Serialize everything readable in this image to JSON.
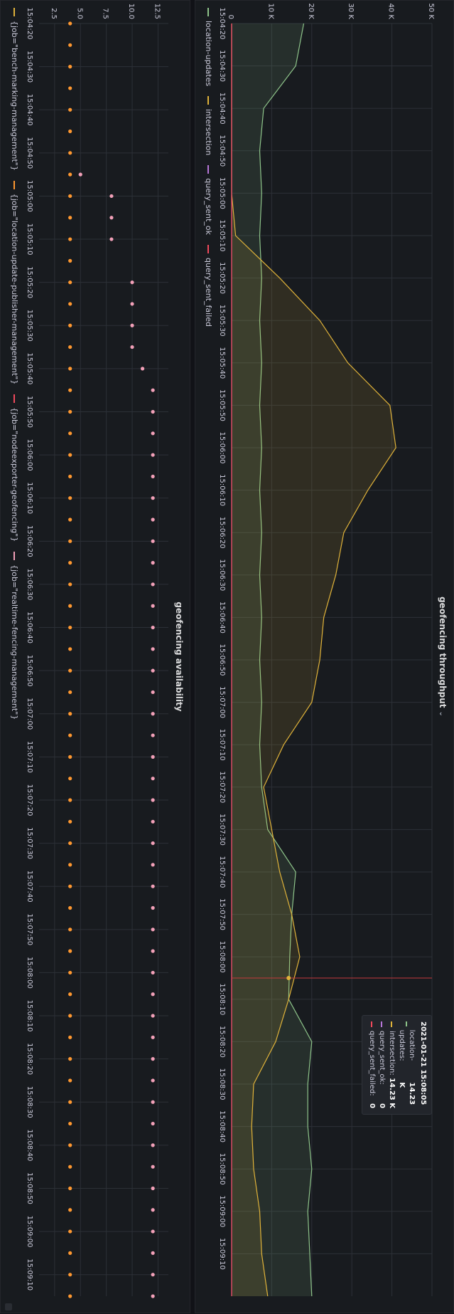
{
  "panels": {
    "throughput": {
      "title": "geofencing throughput",
      "legend": [
        {
          "name": "location-updates",
          "color": "#8ec48a"
        },
        {
          "name": "intersection",
          "color": "#e0b33a"
        },
        {
          "name": "query_sent_ok",
          "color": "#b877d9"
        },
        {
          "name": "query_sent_failed",
          "color": "#f2495c"
        }
      ],
      "tooltip": {
        "time": "2021-01-21 15:08:05",
        "rows": [
          {
            "name": "location-updates:",
            "value": "14.23 K",
            "color": "#8ec48a"
          },
          {
            "name": "intersection:",
            "value": "14.23 K",
            "color": "#e0b33a"
          },
          {
            "name": "query_sent_ok:",
            "value": "0",
            "color": "#b877d9"
          },
          {
            "name": "query_sent_failed:",
            "value": "0",
            "color": "#f2495c"
          }
        ]
      }
    },
    "availability": {
      "title": "geofencing availability",
      "legend": [
        {
          "name": "{job=\"bench-marking-management\"}",
          "color": "#e0b33a"
        },
        {
          "name": "{job=\"location-update-publisher-management\"}",
          "color": "#ff9830"
        },
        {
          "name": "{job=\"nodeexporter-geofencing\"}",
          "color": "#f2495c"
        },
        {
          "name": "{job=\"realtime-fencing-management\"}",
          "color": "#f2a0b8"
        }
      ]
    }
  },
  "chart_data": [
    {
      "type": "area",
      "title": "geofencing throughput",
      "x": [
        "15:04:20",
        "15:04:30",
        "15:04:40",
        "15:04:50",
        "15:05:00",
        "15:05:10",
        "15:05:20",
        "15:05:30",
        "15:05:40",
        "15:05:50",
        "15:06:00",
        "15:06:10",
        "15:06:20",
        "15:06:30",
        "15:06:40",
        "15:06:50",
        "15:07:00",
        "15:07:10",
        "15:07:20",
        "15:07:30",
        "15:07:40",
        "15:07:50",
        "15:08:00",
        "15:08:10",
        "15:08:20",
        "15:08:30",
        "15:08:40",
        "15:08:50",
        "15:09:00",
        "15:09:10",
        "15:09:20"
      ],
      "x_ticks": [
        "15:04:20",
        "15:04:30",
        "15:04:40",
        "15:04:50",
        "15:05:00",
        "15:05:10",
        "15:05:20",
        "15:05:30",
        "15:05:40",
        "15:05:50",
        "15:06:00",
        "15:06:10",
        "15:06:20",
        "15:06:30",
        "15:06:40",
        "15:06:50",
        "15:07:00",
        "15:07:10",
        "15:07:20",
        "15:07:30",
        "15:07:40",
        "15:07:50",
        "15:08:00",
        "15:08:10",
        "15:08:20",
        "15:08:30",
        "15:08:40",
        "15:08:50",
        "15:09:00",
        "15:09:10"
      ],
      "ylim": [
        0,
        50000
      ],
      "y_ticks": [
        0,
        10000,
        20000,
        30000,
        40000,
        50000
      ],
      "y_tick_labels": [
        "0",
        "10 K",
        "20 K",
        "30 K",
        "40 K",
        "50 K"
      ],
      "grid": true,
      "legend_position": "bottom",
      "series": [
        {
          "name": "location-updates",
          "color": "#8ec48a",
          "values": [
            18000,
            16000,
            8000,
            7000,
            7500,
            7000,
            7500,
            7000,
            7500,
            7000,
            7500,
            7000,
            7500,
            7000,
            7500,
            7000,
            7500,
            7000,
            7500,
            9000,
            16000,
            15000,
            14500,
            14230,
            20000,
            19000,
            19000,
            20000,
            19000,
            19500,
            20000
          ]
        },
        {
          "name": "intersection",
          "color": "#e0b33a",
          "values": [
            0,
            0,
            0,
            0,
            0,
            1000,
            12000,
            22000,
            29000,
            39500,
            41000,
            34000,
            28000,
            26000,
            23000,
            22000,
            20000,
            13000,
            8000,
            10000,
            12000,
            15000,
            17000,
            14230,
            11000,
            5500,
            5000,
            5500,
            7000,
            7500,
            9000
          ]
        },
        {
          "name": "query_sent_ok",
          "color": "#b877d9",
          "values": [
            0,
            0,
            0,
            0,
            0,
            0,
            0,
            0,
            0,
            0,
            0,
            0,
            0,
            0,
            0,
            0,
            0,
            0,
            0,
            0,
            0,
            0,
            0,
            0,
            0,
            0,
            0,
            0,
            0,
            0,
            0
          ]
        },
        {
          "name": "query_sent_failed",
          "color": "#f2495c",
          "values": [
            0,
            0,
            0,
            0,
            0,
            0,
            0,
            0,
            0,
            0,
            0,
            0,
            0,
            0,
            0,
            0,
            0,
            0,
            0,
            0,
            0,
            0,
            0,
            0,
            0,
            0,
            0,
            0,
            0,
            0,
            0
          ]
        }
      ],
      "crosshair_x": "15:08:05"
    },
    {
      "type": "scatter",
      "title": "geofencing availability",
      "x": [
        "15:04:20",
        "15:04:25",
        "15:04:30",
        "15:04:35",
        "15:04:40",
        "15:04:45",
        "15:04:50",
        "15:04:55",
        "15:05:00",
        "15:05:05",
        "15:05:10",
        "15:05:15",
        "15:05:20",
        "15:05:25",
        "15:05:30",
        "15:05:35",
        "15:05:40",
        "15:05:45",
        "15:05:50",
        "15:05:55",
        "15:06:00",
        "15:06:05",
        "15:06:10",
        "15:06:15",
        "15:06:20",
        "15:06:25",
        "15:06:30",
        "15:06:35",
        "15:06:40",
        "15:06:45",
        "15:06:50",
        "15:06:55",
        "15:07:00",
        "15:07:05",
        "15:07:10",
        "15:07:15",
        "15:07:20",
        "15:07:25",
        "15:07:30",
        "15:07:35",
        "15:07:40",
        "15:07:45",
        "15:07:50",
        "15:07:55",
        "15:08:00",
        "15:08:05",
        "15:08:10",
        "15:08:15",
        "15:08:20",
        "15:08:25",
        "15:08:30",
        "15:08:35",
        "15:08:40",
        "15:08:45",
        "15:08:50",
        "15:08:55",
        "15:09:00",
        "15:09:05",
        "15:09:10",
        "15:09:15"
      ],
      "x_ticks": [
        "15:04:20",
        "15:04:30",
        "15:04:40",
        "15:04:50",
        "15:05:00",
        "15:05:10",
        "15:05:20",
        "15:05:30",
        "15:05:40",
        "15:05:50",
        "15:06:00",
        "15:06:10",
        "15:06:20",
        "15:06:30",
        "15:06:40",
        "15:06:50",
        "15:07:00",
        "15:07:10",
        "15:07:20",
        "15:07:30",
        "15:07:40",
        "15:07:50",
        "15:08:00",
        "15:08:10",
        "15:08:20",
        "15:08:30",
        "15:08:40",
        "15:08:50",
        "15:09:00",
        "15:09:10"
      ],
      "ylim": [
        1,
        13.5
      ],
      "y_ticks": [
        2.5,
        5.0,
        7.5,
        10.0,
        12.5
      ],
      "y_tick_labels": [
        "2.5",
        "5.0",
        "7.5",
        "10.0",
        "12.5"
      ],
      "grid": true,
      "legend_position": "bottom",
      "series": [
        {
          "name": "{job=\"location-update-publisher-management\"}",
          "color": "#ff9830",
          "values": [
            4,
            4,
            4,
            4,
            4,
            4,
            4,
            4,
            4,
            4,
            4,
            4,
            4,
            4,
            4,
            4,
            4,
            4,
            4,
            4,
            4,
            4,
            4,
            4,
            4,
            4,
            4,
            4,
            4,
            4,
            4,
            4,
            4,
            4,
            4,
            4,
            4,
            4,
            4,
            4,
            4,
            4,
            4,
            4,
            4,
            4,
            4,
            4,
            4,
            4,
            4,
            4,
            4,
            4,
            4,
            4,
            4,
            4,
            4,
            4
          ]
        },
        {
          "name": "{job=\"realtime-fencing-management\"}",
          "color": "#f2a0b8",
          "values": [
            null,
            null,
            null,
            null,
            null,
            null,
            null,
            5,
            8,
            8,
            8,
            null,
            10,
            10,
            10,
            10,
            11,
            12,
            12,
            12,
            12,
            12,
            12,
            12,
            12,
            12,
            12,
            12,
            12,
            12,
            12,
            12,
            12,
            12,
            12,
            12,
            12,
            12,
            12,
            12,
            12,
            12,
            12,
            12,
            12,
            12,
            12,
            12,
            12,
            12,
            12,
            12,
            12,
            12,
            12,
            12,
            12,
            12,
            12,
            12
          ]
        }
      ]
    }
  ]
}
